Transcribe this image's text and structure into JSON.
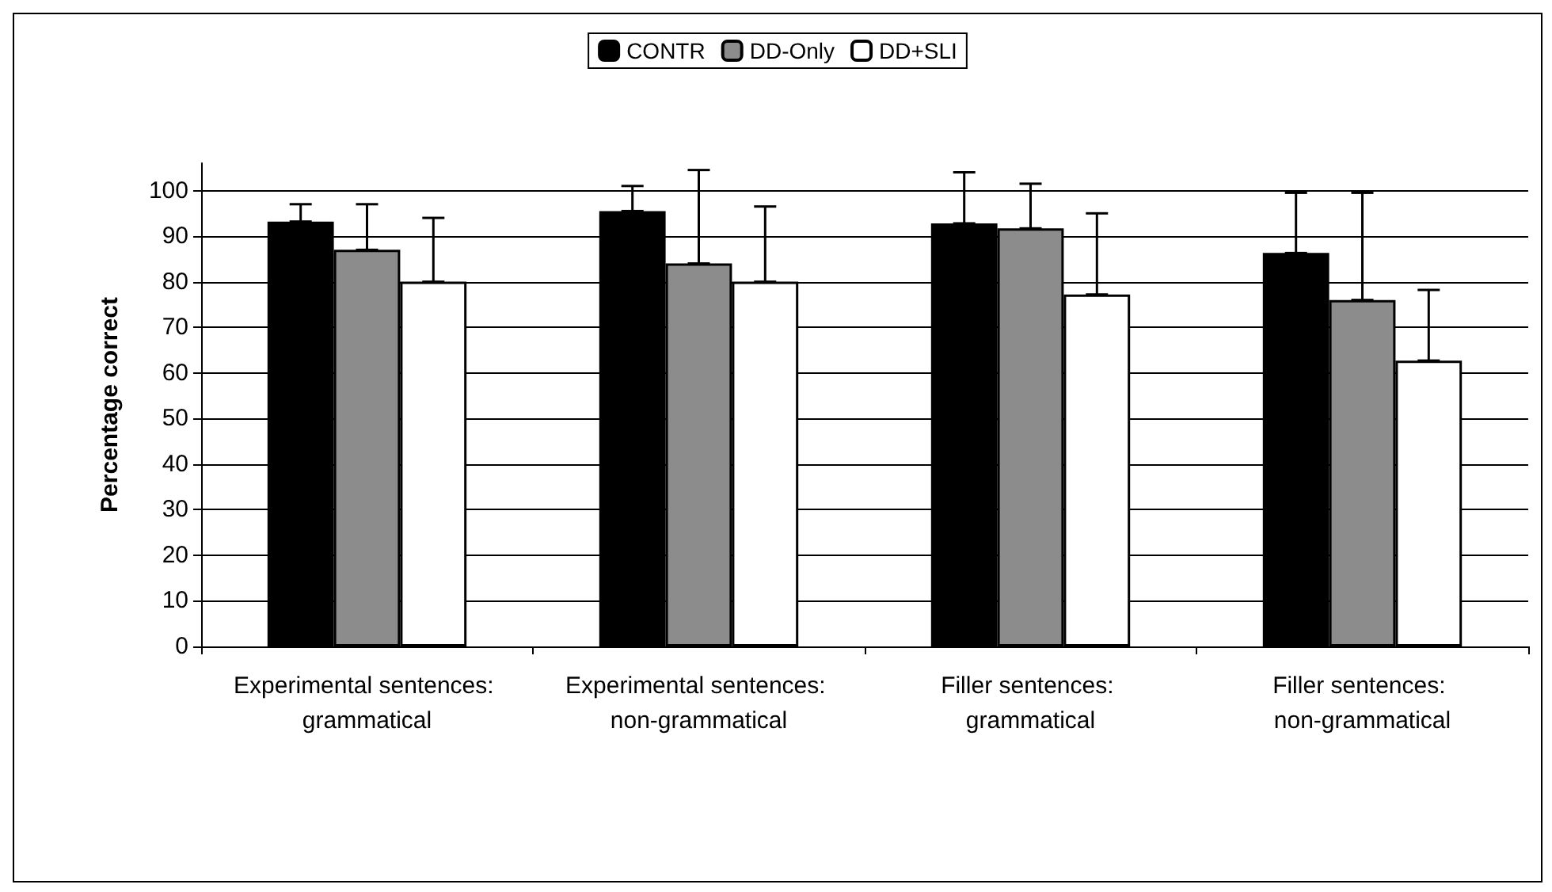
{
  "chart_data": {
    "type": "bar",
    "ylabel": "Percentage correct",
    "categories": [
      "Experimental sentences: grammatical",
      "Experimental sentences: non-grammatical",
      "Filler sentences: grammatical",
      "Filler sentences: non-grammatical"
    ],
    "series": [
      {
        "name": "CONTR",
        "color": "#000000",
        "values": [
          93.2,
          95.5,
          92.8,
          86.3
        ],
        "errors": [
          [
            93.2,
            97
          ],
          [
            95.5,
            101
          ],
          [
            92.8,
            104
          ],
          [
            86.3,
            99.5
          ]
        ]
      },
      {
        "name": "DD-Only",
        "color": "#8c8c8c",
        "values": [
          87,
          84,
          91.7,
          76
        ],
        "errors": [
          [
            87,
            97
          ],
          [
            84,
            104.5
          ],
          [
            91.7,
            101.5
          ],
          [
            76,
            99.5
          ]
        ]
      },
      {
        "name": "DD+SLI",
        "color": "#ffffff",
        "values": [
          80,
          80,
          77.2,
          62.7
        ],
        "errors": [
          [
            80,
            94
          ],
          [
            80,
            96.5
          ],
          [
            77.2,
            95
          ],
          [
            62.7,
            78.2
          ]
        ]
      }
    ],
    "ylim": [
      0,
      106
    ],
    "yticks": [
      0,
      10,
      20,
      30,
      40,
      50,
      60,
      70,
      80,
      90,
      100
    ],
    "grid": "y",
    "legend": "top"
  }
}
